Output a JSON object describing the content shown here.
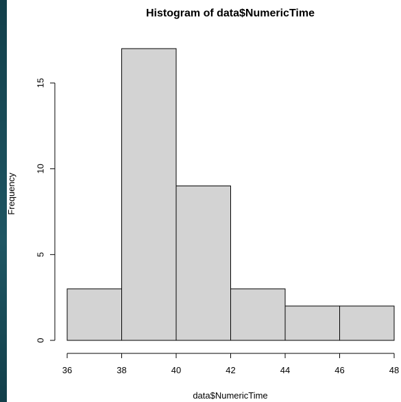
{
  "chart_data": {
    "type": "bar",
    "title": "Histogram of data$NumericTime",
    "xlabel": "data$NumericTime",
    "ylabel": "Frequency",
    "bins": [
      {
        "from": 36,
        "to": 38,
        "count": 3
      },
      {
        "from": 38,
        "to": 40,
        "count": 17
      },
      {
        "from": 40,
        "to": 42,
        "count": 9
      },
      {
        "from": 42,
        "to": 44,
        "count": 3
      },
      {
        "from": 44,
        "to": 46,
        "count": 2
      },
      {
        "from": 46,
        "to": 48,
        "count": 2
      }
    ],
    "xlim": [
      36,
      48
    ],
    "ylim": [
      0,
      17
    ],
    "x_ticks": [
      36,
      38,
      40,
      42,
      44,
      46,
      48
    ],
    "y_ticks": [
      0,
      5,
      10,
      15
    ],
    "bar_fill": "#d3d3d3",
    "bar_stroke": "#000000",
    "grid": false,
    "legend": "none"
  }
}
